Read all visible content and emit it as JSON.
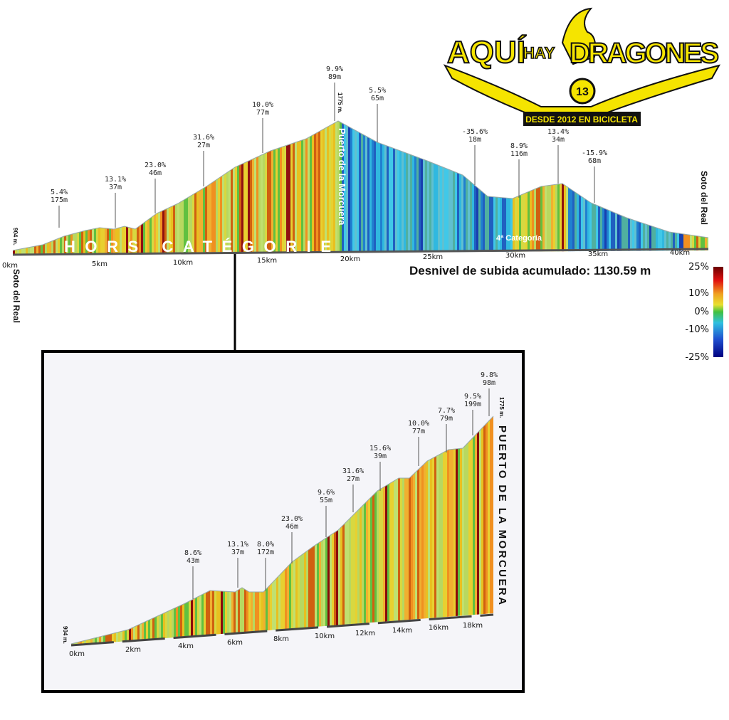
{
  "logo": {
    "word1": "AQUÍ",
    "word2": "HAY",
    "word3": "DRAGONES",
    "number": "13",
    "tagline": "DESDE 2012 EN BICICLETA"
  },
  "profile": {
    "start": "Soto del Real",
    "end": "Soto del Real",
    "start_altitude": "904 m.",
    "summit_altitude": "1775 m.",
    "summit": "Puerto de la Morcuera",
    "category_hc": "HORS CATÉGORIE",
    "category_4": "4ª Categoría",
    "km_labels": [
      "0km",
      "5km",
      "10km",
      "15km",
      "20km",
      "25km",
      "30km",
      "35km",
      "40km"
    ],
    "annotations": [
      {
        "grade": "5.4%",
        "length": "175m"
      },
      {
        "grade": "13.1%",
        "length": "37m"
      },
      {
        "grade": "23.0%",
        "length": "46m"
      },
      {
        "grade": "31.6%",
        "length": "27m"
      },
      {
        "grade": "10.0%",
        "length": "77m"
      },
      {
        "grade": "9.9%",
        "length": "89m"
      },
      {
        "grade": "5.5%",
        "length": "65m"
      },
      {
        "grade": "-35.6%",
        "length": "18m"
      },
      {
        "grade": "8.9%",
        "length": "116m"
      },
      {
        "grade": "13.4%",
        "length": "34m"
      },
      {
        "grade": "-15.9%",
        "length": "68m"
      }
    ]
  },
  "ascent": "Desnivel de subida acumulado: 1130.59 m",
  "legend": [
    "25%",
    "10%",
    "0%",
    "-10%",
    "-25%"
  ],
  "inset": {
    "start_altitude": "904 m.",
    "summit_altitude": "1775 m.",
    "summit": "PUERTO DE LA MORCUERA",
    "km_labels": [
      "0km",
      "2km",
      "4km",
      "6km",
      "8km",
      "10km",
      "12km",
      "14km",
      "16km",
      "18km"
    ],
    "annotations": [
      {
        "grade": "8.6%",
        "length": "43m"
      },
      {
        "grade": "13.1%",
        "length": "37m"
      },
      {
        "grade": "8.0%",
        "length": "172m"
      },
      {
        "grade": "23.0%",
        "length": "46m"
      },
      {
        "grade": "9.6%",
        "length": "55m"
      },
      {
        "grade": "31.6%",
        "length": "27m"
      },
      {
        "grade": "15.6%",
        "length": "39m"
      },
      {
        "grade": "10.0%",
        "length": "77m"
      },
      {
        "grade": "7.7%",
        "length": "79m"
      },
      {
        "grade": "9.5%",
        "length": "199m"
      },
      {
        "grade": "9.8%",
        "length": "98m"
      }
    ]
  }
}
